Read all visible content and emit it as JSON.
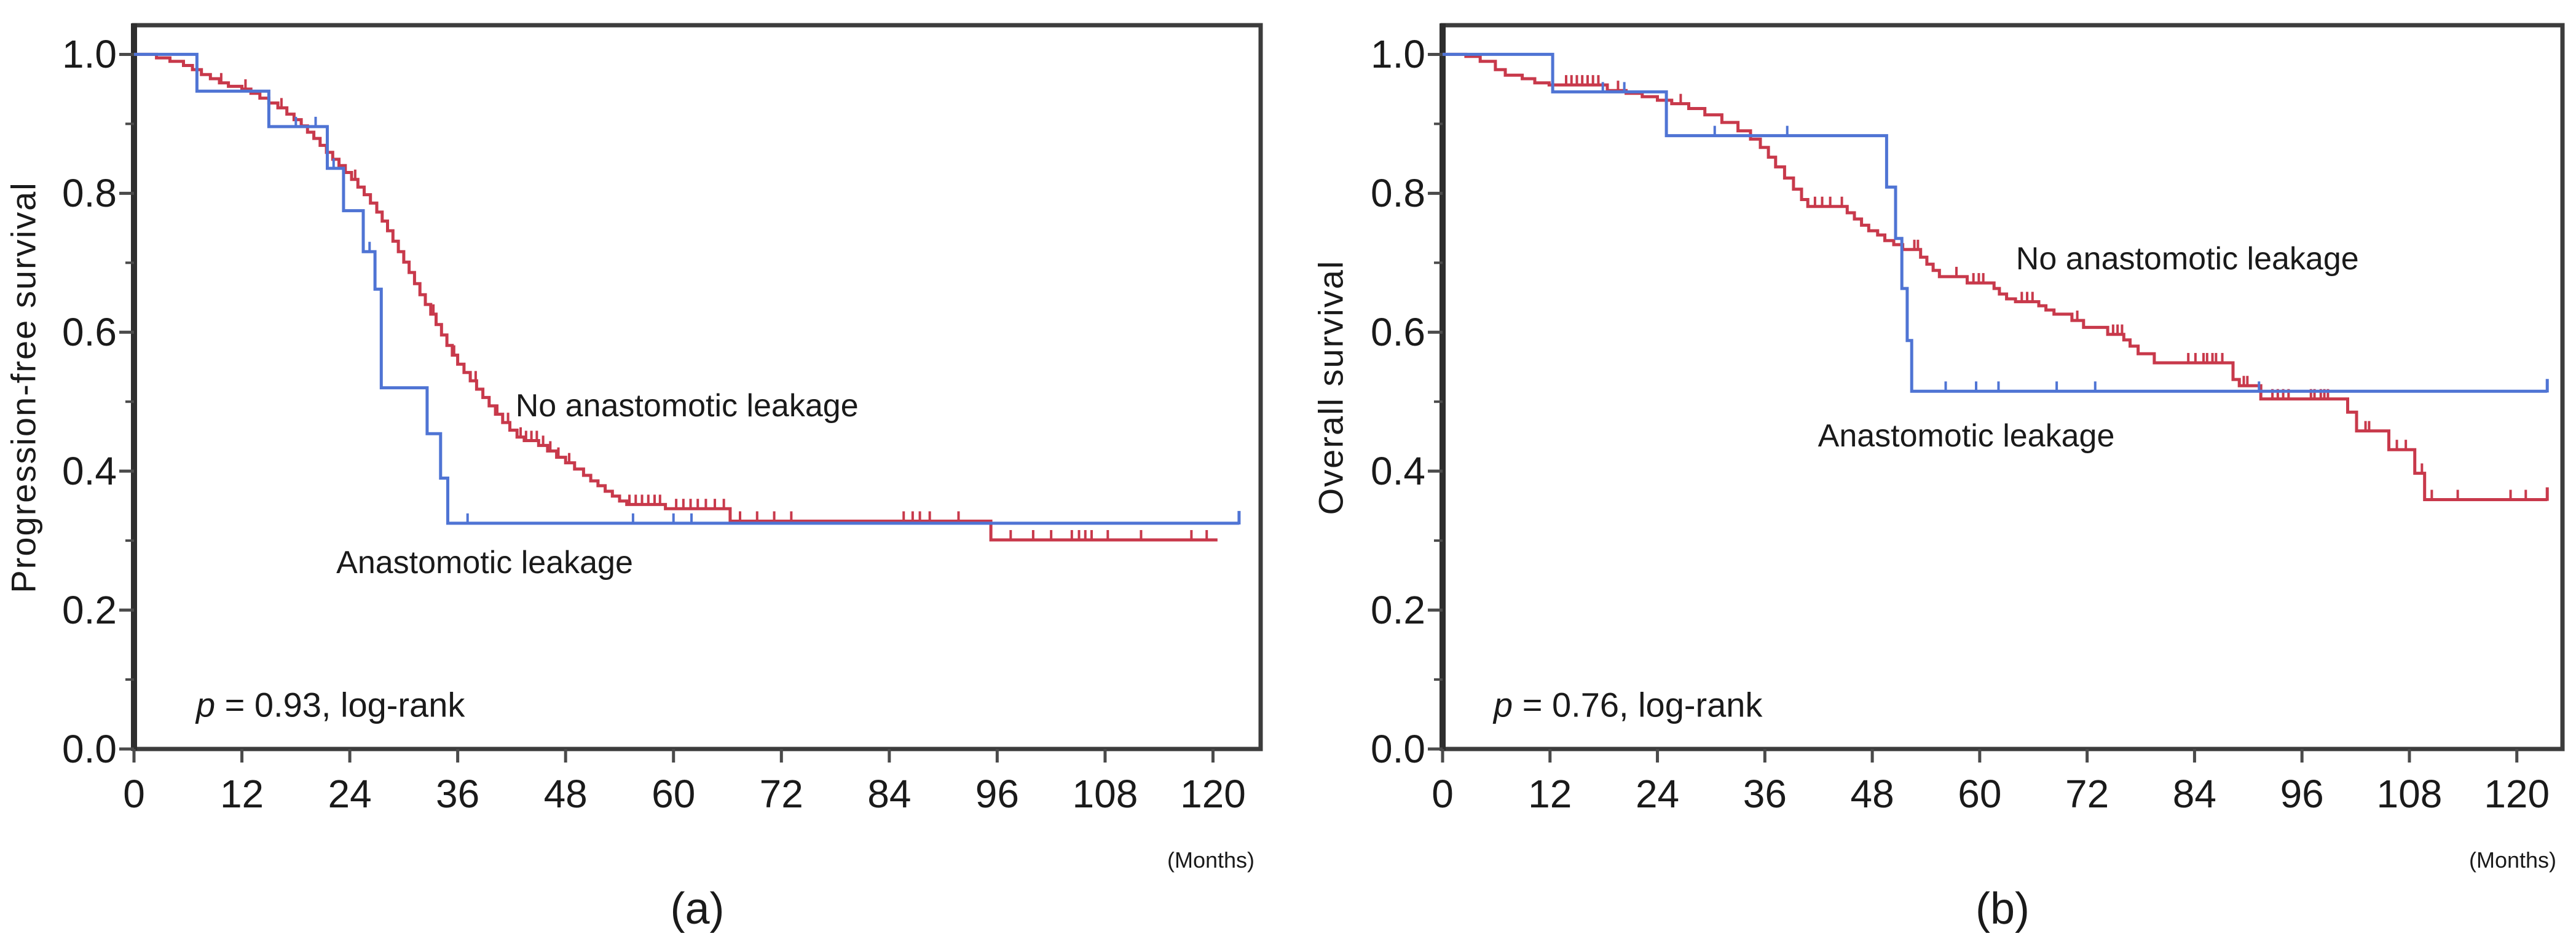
{
  "page": {
    "background": "#ffffff"
  },
  "colors": {
    "no_leakage_red": "#C8394B",
    "leakage_blue": "#4F74D4",
    "frame": "#3C3C3C",
    "tick": "#4A4A4A",
    "text": "#1A1A1A"
  },
  "panels": [
    {
      "caption": "(a)",
      "y_title": "Progression-free survival",
      "x_unit": "(Months)",
      "p_label": "p",
      "p_rest": " = 0.93, log-rank"
    },
    {
      "caption": "(b)",
      "y_title": "Overall  survival",
      "x_unit": "(Months)",
      "p_label": "p",
      "p_rest": " = 0.76, log-rank"
    }
  ],
  "chart_data": [
    {
      "type": "line",
      "subtype": "kaplan-meier-step",
      "title": "Progression-free survival by anastomotic leakage status",
      "xlabel": "(Months)",
      "ylabel": "Progression-free survival",
      "xlim": [
        0,
        125.3
      ],
      "ylim": [
        0,
        1.042
      ],
      "x_ticks": [
        0,
        12,
        24,
        36,
        48,
        60,
        72,
        84,
        96,
        108,
        120
      ],
      "y_ticks": [
        1.0,
        0.8,
        0.6,
        0.4,
        0.2,
        0.0
      ],
      "y_minor_ticks": [
        0.9,
        0.7,
        0.5,
        0.3,
        0.1
      ],
      "grid": false,
      "legend_position": "in-plot-text",
      "p_value_text": "p = 0.93, log-rank",
      "p_annotation": {
        "x": 6.9,
        "y": 0.064
      },
      "series": [
        {
          "name": "No anastomotic leakage",
          "color": "#C8394B",
          "label": {
            "text": "No anastomotic leakage",
            "x": 61.5,
            "y": 0.494
          },
          "steps": [
            [
              0,
              1.0
            ],
            [
              2.5,
              0.995
            ],
            [
              4,
              0.99
            ],
            [
              5.5,
              0.984
            ],
            [
              6.5,
              0.978
            ],
            [
              7.5,
              0.971
            ],
            [
              8.5,
              0.965
            ],
            [
              9.5,
              0.959
            ],
            [
              10.5,
              0.954
            ],
            [
              12,
              0.95
            ],
            [
              13,
              0.944
            ],
            [
              14,
              0.937
            ],
            [
              15,
              0.93
            ],
            [
              16,
              0.923
            ],
            [
              17,
              0.914
            ],
            [
              17.8,
              0.906
            ],
            [
              18.6,
              0.897
            ],
            [
              19.3,
              0.888
            ],
            [
              20,
              0.879
            ],
            [
              20.7,
              0.869
            ],
            [
              21.4,
              0.859
            ],
            [
              22.1,
              0.849
            ],
            [
              22.8,
              0.84
            ],
            [
              23.5,
              0.83
            ],
            [
              24.2,
              0.82
            ],
            [
              24.9,
              0.809
            ],
            [
              25.6,
              0.798
            ],
            [
              26.3,
              0.786
            ],
            [
              27,
              0.773
            ],
            [
              27.6,
              0.76
            ],
            [
              28.2,
              0.746
            ],
            [
              28.8,
              0.731
            ],
            [
              29.4,
              0.716
            ],
            [
              30,
              0.701
            ],
            [
              30.6,
              0.686
            ],
            [
              31.2,
              0.67
            ],
            [
              31.8,
              0.654
            ],
            [
              32.4,
              0.64
            ],
            [
              33,
              0.626
            ],
            [
              33.6,
              0.611
            ],
            [
              34.2,
              0.596
            ],
            [
              34.8,
              0.581
            ],
            [
              35.4,
              0.567
            ],
            [
              36,
              0.554
            ],
            [
              36.7,
              0.542
            ],
            [
              37.4,
              0.53
            ],
            [
              38.1,
              0.518
            ],
            [
              38.8,
              0.506
            ],
            [
              39.5,
              0.494
            ],
            [
              40.2,
              0.482
            ],
            [
              41,
              0.47
            ],
            [
              41.8,
              0.459
            ],
            [
              42.6,
              0.449
            ],
            [
              43.4,
              0.444
            ],
            [
              45,
              0.437
            ],
            [
              46,
              0.429
            ],
            [
              47,
              0.42
            ],
            [
              48,
              0.412
            ],
            [
              49,
              0.403
            ],
            [
              50,
              0.394
            ],
            [
              50.8,
              0.386
            ],
            [
              51.6,
              0.379
            ],
            [
              52.4,
              0.371
            ],
            [
              53.2,
              0.364
            ],
            [
              54,
              0.357
            ],
            [
              54.8,
              0.352
            ],
            [
              59.1,
              0.346
            ],
            [
              66.3,
              0.328
            ],
            [
              95.3,
              0.301
            ]
          ],
          "censors": [
            9.7,
            12.4,
            16.4,
            24.6,
            33.3,
            35.6,
            38,
            40.4,
            41.6,
            43,
            43.6,
            44.2,
            44.8,
            45.5,
            46.3,
            47.2,
            48.4,
            55.1,
            55.8,
            56.5,
            57.2,
            57.9,
            58.5,
            60.3,
            61.1,
            61.9,
            62.7,
            63.6,
            64.6,
            65.6,
            67.4,
            69.3,
            71.2,
            73.1,
            85.6,
            86.6,
            87.4,
            88.5,
            91.7,
            97.5,
            100,
            102,
            104.3,
            105.1,
            105.8,
            106.5,
            108.3,
            112,
            117.6,
            119.3
          ],
          "end_month": 120.5,
          "end_tick": false
        },
        {
          "name": "Anastomotic leakage",
          "color": "#4F74D4",
          "label": {
            "text": "Anastomotic leakage",
            "x": 39,
            "y": 0.268
          },
          "steps": [
            [
              0,
              1.0
            ],
            [
              7,
              0.947
            ],
            [
              15,
              0.896
            ],
            [
              21.5,
              0.836
            ],
            [
              23.3,
              0.775
            ],
            [
              25.5,
              0.716
            ],
            [
              26.8,
              0.662
            ],
            [
              27.5,
              0.52
            ],
            [
              32.6,
              0.454
            ],
            [
              34.1,
              0.39
            ],
            [
              34.9,
              0.325
            ]
          ],
          "censors": [
            18,
            20.2,
            22.2,
            26.2,
            37.1,
            55.5,
            60,
            62
          ],
          "end_month": 122.9,
          "end_tick": true
        }
      ]
    },
    {
      "type": "line",
      "subtype": "kaplan-meier-step",
      "title": "Overall survival by anastomotic leakage status",
      "xlabel": "(Months)",
      "ylabel": "Overall survival",
      "xlim": [
        0,
        125.1
      ],
      "ylim": [
        0,
        1.042
      ],
      "x_ticks": [
        0,
        12,
        24,
        36,
        48,
        60,
        72,
        84,
        96,
        108,
        120
      ],
      "y_ticks": [
        1.0,
        0.8,
        0.6,
        0.4,
        0.2,
        0.0
      ],
      "y_minor_ticks": [
        0.9,
        0.7,
        0.5,
        0.3,
        0.1
      ],
      "grid": false,
      "legend_position": "in-plot-text",
      "p_value_text": "p = 0.76, log-rank",
      "p_annotation": {
        "x": 5.7,
        "y": 0.064
      },
      "series": [
        {
          "name": "No anastomotic leakage",
          "color": "#C8394B",
          "label": {
            "text": "No anastomotic leakage",
            "x": 83.2,
            "y": 0.706
          },
          "steps": [
            [
              0,
              1.0
            ],
            [
              2.6,
              0.997
            ],
            [
              4.2,
              0.99
            ],
            [
              5.9,
              0.978
            ],
            [
              7,
              0.97
            ],
            [
              8.9,
              0.965
            ],
            [
              10.3,
              0.959
            ],
            [
              11.9,
              0.956
            ],
            [
              18.4,
              0.948
            ],
            [
              20.5,
              0.944
            ],
            [
              22.3,
              0.939
            ],
            [
              24,
              0.934
            ],
            [
              25.6,
              0.929
            ],
            [
              27.5,
              0.922
            ],
            [
              29.3,
              0.913
            ],
            [
              31.2,
              0.902
            ],
            [
              33,
              0.89
            ],
            [
              34.4,
              0.878
            ],
            [
              35.5,
              0.866
            ],
            [
              36.4,
              0.852
            ],
            [
              37.2,
              0.838
            ],
            [
              38.2,
              0.822
            ],
            [
              39.2,
              0.806
            ],
            [
              40.1,
              0.791
            ],
            [
              40.8,
              0.781
            ],
            [
              45.2,
              0.772
            ],
            [
              46,
              0.763
            ],
            [
              46.8,
              0.754
            ],
            [
              47.6,
              0.746
            ],
            [
              48.6,
              0.74
            ],
            [
              49.4,
              0.732
            ],
            [
              50.4,
              0.726
            ],
            [
              51.4,
              0.719
            ],
            [
              53.4,
              0.708
            ],
            [
              54.1,
              0.698
            ],
            [
              54.8,
              0.689
            ],
            [
              55.5,
              0.68
            ],
            [
              58.6,
              0.671
            ],
            [
              61.6,
              0.663
            ],
            [
              62.2,
              0.655
            ],
            [
              63,
              0.648
            ],
            [
              64,
              0.644
            ],
            [
              66.6,
              0.638
            ],
            [
              67.4,
              0.632
            ],
            [
              68.3,
              0.626
            ],
            [
              70.3,
              0.617
            ],
            [
              71.6,
              0.607
            ],
            [
              74.3,
              0.597
            ],
            [
              76.1,
              0.589
            ],
            [
              76.8,
              0.58
            ],
            [
              77.7,
              0.569
            ],
            [
              79.5,
              0.556
            ],
            [
              88.3,
              0.532
            ],
            [
              89,
              0.523
            ],
            [
              91.4,
              0.504
            ],
            [
              101.1,
              0.485
            ],
            [
              102.1,
              0.458
            ],
            [
              105.7,
              0.431
            ],
            [
              108.6,
              0.397
            ],
            [
              109.7,
              0.359
            ]
          ],
          "censors": [
            13.8,
            14.4,
            15,
            15.6,
            16.2,
            16.8,
            17.4,
            19.6,
            26.6,
            41.6,
            42.4,
            43.3,
            44.6,
            52.7,
            53.1,
            57.4,
            59.3,
            59.9,
            60.4,
            64.7,
            65.3,
            65.9,
            70.9,
            74.9,
            75.4,
            75.9,
            83.3,
            84.1,
            85,
            85.4,
            86,
            86.4,
            87.1,
            89.5,
            89.9,
            92.7,
            93.3,
            93.9,
            94.5,
            97,
            97.4,
            98.1,
            98.5,
            98.9,
            103.1,
            103.5,
            106.6,
            107.6,
            109.4,
            110.5,
            113.4,
            119.3,
            121
          ],
          "end_month": 123.4,
          "end_tick": true
        },
        {
          "name": "Anastomotic leakage",
          "color": "#4F74D4",
          "label": {
            "text": "Anastomotic leakage",
            "x": 58.5,
            "y": 0.451
          },
          "steps": [
            [
              0,
              1.0
            ],
            [
              12.3,
              0.946
            ],
            [
              25,
              0.883
            ],
            [
              49.6,
              0.809
            ],
            [
              50.6,
              0.735
            ],
            [
              51.3,
              0.663
            ],
            [
              51.9,
              0.588
            ],
            [
              52.4,
              0.515
            ]
          ],
          "censors": [
            17.9,
            20.3,
            30.4,
            38.5,
            56.2,
            59.6,
            62.1,
            68.6,
            72.9,
            91.2
          ],
          "end_month": 123.4,
          "end_tick": true
        }
      ]
    }
  ]
}
